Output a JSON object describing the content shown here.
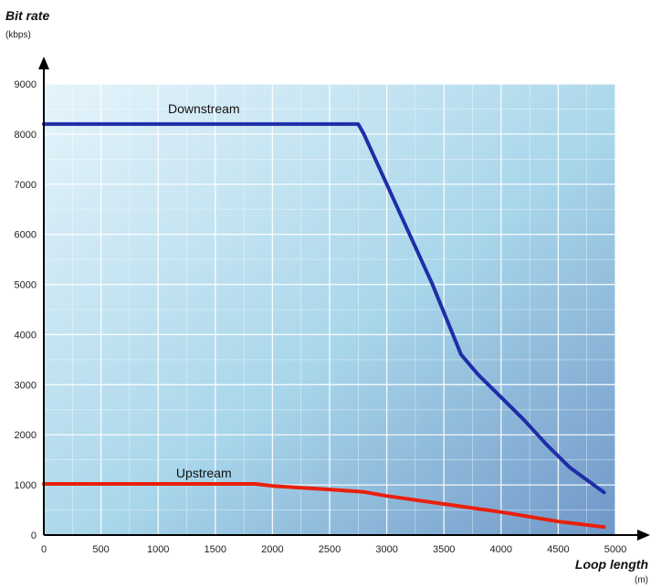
{
  "chart_data": {
    "type": "line",
    "ylabel": "Bit rate",
    "yunit": "(kbps)",
    "xlabel": "Loop length",
    "xunit": "(m)",
    "xlim": [
      0,
      5000
    ],
    "ylim": [
      0,
      9000
    ],
    "xticks": [
      "0",
      "500",
      "1000",
      "1500",
      "2000",
      "2500",
      "3000",
      "3500",
      "4000",
      "4500",
      "5000"
    ],
    "yticks": [
      "0",
      "1000",
      "2000",
      "3000",
      "4000",
      "5000",
      "6000",
      "7000",
      "8000",
      "9000"
    ],
    "grid": true,
    "legend": "none",
    "series": [
      {
        "name": "Downstream",
        "color": "#1f2ea8",
        "points": [
          [
            0,
            8200
          ],
          [
            2750,
            8200
          ],
          [
            2800,
            8000
          ],
          [
            3000,
            7000
          ],
          [
            3200,
            6000
          ],
          [
            3400,
            5000
          ],
          [
            3650,
            3600
          ],
          [
            3800,
            3200
          ],
          [
            4000,
            2750
          ],
          [
            4200,
            2300
          ],
          [
            4400,
            1800
          ],
          [
            4600,
            1350
          ],
          [
            4900,
            850
          ]
        ]
      },
      {
        "name": "Upstream",
        "color": "#e8200c",
        "points": [
          [
            0,
            1020
          ],
          [
            1850,
            1020
          ],
          [
            2000,
            980
          ],
          [
            2500,
            910
          ],
          [
            2800,
            860
          ],
          [
            3000,
            780
          ],
          [
            3500,
            620
          ],
          [
            4000,
            460
          ],
          [
            4500,
            270
          ],
          [
            4900,
            160
          ]
        ]
      }
    ],
    "colors": {
      "plot_background_light": "#e6f4fb",
      "plot_background_mid": "#a8d6ea",
      "plot_background_dark": "#6f97c8",
      "grid": "#ffffff",
      "axis": "#000000"
    }
  }
}
